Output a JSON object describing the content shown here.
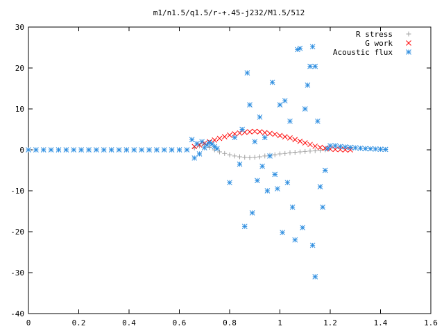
{
  "chart_data": {
    "type": "scatter",
    "title": "m1/n1.5/q1.5/r-+.45-j232/M1.5/512",
    "xlabel": "",
    "ylabel": "",
    "xlim": [
      0,
      1.6
    ],
    "ylim": [
      -40,
      30
    ],
    "x_ticks": [
      "0",
      "0.2",
      "0.4",
      "0.6",
      "0.8",
      "1",
      "1.2",
      "1.4",
      "1.6"
    ],
    "y_ticks": [
      "30",
      "20",
      "10",
      "0",
      "-10",
      "-20",
      "-30",
      "-40"
    ],
    "x_tick_values": [
      0,
      0.2,
      0.4,
      0.6,
      0.8,
      1.0,
      1.2,
      1.4,
      1.6
    ],
    "y_tick_values": [
      30,
      20,
      10,
      0,
      -10,
      -20,
      -30,
      -40
    ],
    "grid": false,
    "legend_position": "top-right",
    "series": [
      {
        "name": "R stress",
        "marker": "plus",
        "color": "#a0a0a0",
        "points": [
          [
            0.66,
            0.5
          ],
          [
            0.68,
            1.0
          ],
          [
            0.7,
            1.2
          ],
          [
            0.72,
            0.6
          ],
          [
            0.74,
            0.0
          ],
          [
            0.76,
            -0.5
          ],
          [
            0.78,
            -0.9
          ],
          [
            0.8,
            -1.2
          ],
          [
            0.82,
            -1.5
          ],
          [
            0.84,
            -1.7
          ],
          [
            0.86,
            -1.8
          ],
          [
            0.88,
            -1.9
          ],
          [
            0.9,
            -1.8
          ],
          [
            0.92,
            -1.7
          ],
          [
            0.94,
            -1.5
          ],
          [
            0.96,
            -1.3
          ],
          [
            0.98,
            -1.2
          ],
          [
            1.0,
            -1.0
          ],
          [
            1.02,
            -0.9
          ],
          [
            1.04,
            -0.7
          ],
          [
            1.06,
            -0.6
          ],
          [
            1.08,
            -0.5
          ],
          [
            1.1,
            -0.4
          ],
          [
            1.12,
            -0.3
          ],
          [
            1.14,
            -0.2
          ],
          [
            1.16,
            -0.1
          ],
          [
            1.18,
            0.0
          ]
        ]
      },
      {
        "name": "G work",
        "marker": "cross",
        "color": "#ff0000",
        "points": [
          [
            0.66,
            0.8
          ],
          [
            0.68,
            1.2
          ],
          [
            0.7,
            1.6
          ],
          [
            0.72,
            2.0
          ],
          [
            0.74,
            2.4
          ],
          [
            0.76,
            2.8
          ],
          [
            0.78,
            3.2
          ],
          [
            0.8,
            3.6
          ],
          [
            0.82,
            3.9
          ],
          [
            0.84,
            4.1
          ],
          [
            0.86,
            4.3
          ],
          [
            0.88,
            4.4
          ],
          [
            0.9,
            4.5
          ],
          [
            0.92,
            4.4
          ],
          [
            0.94,
            4.2
          ],
          [
            0.96,
            4.0
          ],
          [
            0.98,
            3.8
          ],
          [
            1.0,
            3.5
          ],
          [
            1.02,
            3.2
          ],
          [
            1.04,
            2.9
          ],
          [
            1.06,
            2.5
          ],
          [
            1.08,
            2.1
          ],
          [
            1.1,
            1.7
          ],
          [
            1.12,
            1.3
          ],
          [
            1.14,
            0.9
          ],
          [
            1.16,
            0.6
          ],
          [
            1.18,
            0.4
          ],
          [
            1.2,
            0.2
          ],
          [
            1.22,
            0.1
          ],
          [
            1.24,
            0.05
          ],
          [
            1.26,
            0.0
          ],
          [
            1.28,
            0.0
          ]
        ]
      },
      {
        "name": "Acoustic flux",
        "marker": "star",
        "color": "#2e8ee0",
        "points": [
          [
            0.0,
            0
          ],
          [
            0.03,
            0
          ],
          [
            0.06,
            0
          ],
          [
            0.09,
            0
          ],
          [
            0.12,
            0
          ],
          [
            0.15,
            0
          ],
          [
            0.18,
            0
          ],
          [
            0.21,
            0
          ],
          [
            0.24,
            0
          ],
          [
            0.27,
            0
          ],
          [
            0.3,
            0
          ],
          [
            0.33,
            0
          ],
          [
            0.36,
            0
          ],
          [
            0.39,
            0
          ],
          [
            0.42,
            0
          ],
          [
            0.45,
            0
          ],
          [
            0.48,
            0
          ],
          [
            0.51,
            0
          ],
          [
            0.54,
            0
          ],
          [
            0.57,
            0
          ],
          [
            0.6,
            0
          ],
          [
            0.63,
            0
          ],
          [
            0.65,
            2.5
          ],
          [
            0.66,
            -2.0
          ],
          [
            0.67,
            1.5
          ],
          [
            0.68,
            -1.0
          ],
          [
            0.69,
            2.0
          ],
          [
            0.7,
            0.5
          ],
          [
            0.71,
            1.2
          ],
          [
            0.72,
            1.8
          ],
          [
            0.73,
            1.4
          ],
          [
            0.74,
            0.8
          ],
          [
            0.75,
            0.3
          ],
          [
            0.8,
            -8.0
          ],
          [
            0.82,
            3.0
          ],
          [
            0.84,
            -3.5
          ],
          [
            0.85,
            5.0
          ],
          [
            0.86,
            -18.7
          ],
          [
            0.87,
            18.8
          ],
          [
            0.88,
            11.0
          ],
          [
            0.89,
            -15.4
          ],
          [
            0.9,
            2.0
          ],
          [
            0.91,
            -7.5
          ],
          [
            0.92,
            8.0
          ],
          [
            0.93,
            -4.0
          ],
          [
            0.94,
            3.0
          ],
          [
            0.95,
            -10.0
          ],
          [
            0.96,
            -1.5
          ],
          [
            0.97,
            16.5
          ],
          [
            0.98,
            -6.0
          ],
          [
            0.99,
            -9.5
          ],
          [
            1.0,
            11.0
          ],
          [
            1.01,
            -20.2
          ],
          [
            1.02,
            12.0
          ],
          [
            1.03,
            -8.0
          ],
          [
            1.04,
            7.0
          ],
          [
            1.05,
            -14.0
          ],
          [
            1.06,
            -22.0
          ],
          [
            1.07,
            24.5
          ],
          [
            1.08,
            24.8
          ],
          [
            1.09,
            -19.0
          ],
          [
            1.1,
            10.0
          ],
          [
            1.11,
            15.8
          ],
          [
            1.12,
            20.4
          ],
          [
            1.13,
            -23.3
          ],
          [
            1.14,
            -31.0
          ],
          [
            1.15,
            7.0
          ],
          [
            1.16,
            -9.0
          ],
          [
            1.17,
            -14.0
          ],
          [
            1.13,
            25.2
          ],
          [
            1.14,
            20.4
          ],
          [
            1.18,
            -5.0
          ],
          [
            1.19,
            0.3
          ],
          [
            1.2,
            1.0
          ],
          [
            1.22,
            1.0
          ],
          [
            1.24,
            0.8
          ],
          [
            1.26,
            0.7
          ],
          [
            1.28,
            0.6
          ],
          [
            1.3,
            0.5
          ],
          [
            1.32,
            0.4
          ],
          [
            1.34,
            0.3
          ],
          [
            1.36,
            0.25
          ],
          [
            1.38,
            0.2
          ],
          [
            1.4,
            0.15
          ],
          [
            1.42,
            0.1
          ]
        ]
      }
    ]
  }
}
